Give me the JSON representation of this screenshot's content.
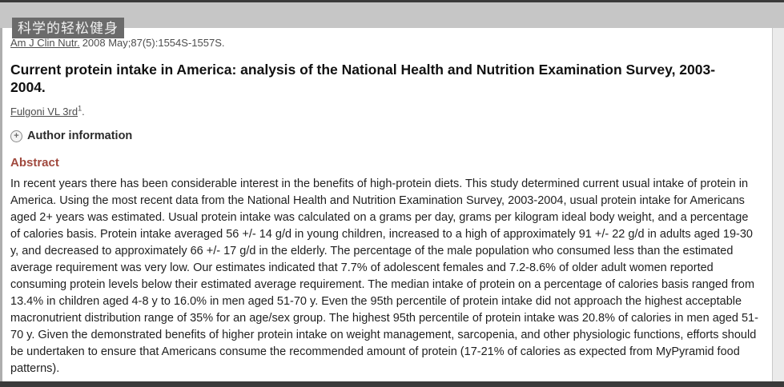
{
  "overlay": {
    "watermark_text": "科学的轻松健身"
  },
  "citation": {
    "journal": "Am J Clin Nutr.",
    "details": "2008 May;87(5):1554S-1557S."
  },
  "article": {
    "title": "Current protein intake in America: analysis of the National Health and Nutrition Examination Survey, 2003-2004.",
    "author": "Fulgoni VL 3rd",
    "author_affiliation_marker": "1",
    "author_period": ".",
    "author_information_label": "Author information"
  },
  "icons": {
    "expand_glyph": "+"
  },
  "abstract": {
    "heading": "Abstract",
    "body": "In recent years there has been considerable interest in the benefits of high-protein diets. This study determined current usual intake of protein in America. Using the most recent data from the National Health and Nutrition Examination Survey, 2003-2004, usual protein intake for Americans aged 2+ years was estimated. Usual protein intake was calculated on a grams per day, grams per kilogram ideal body weight, and a percentage of calories basis. Protein intake averaged 56 +/- 14 g/d in young children, increased to a high of approximately 91 +/- 22 g/d in adults aged 19-30 y, and decreased to approximately 66 +/- 17 g/d in the elderly. The percentage of the male population who consumed less than the estimated average requirement was very low. Our estimates indicated that 7.7% of adolescent females and 7.2-8.6% of older adult women reported consuming protein levels below their estimated average requirement. The median intake of protein on a percentage of calories basis ranged from 13.4% in children aged 4-8 y to 16.0% in men aged 51-70 y. Even the 95th percentile of protein intake did not approach the highest acceptable macronutrient distribution range of 35% for an age/sex group. The highest 95th percentile of protein intake was 20.8% of calories in men aged 51-70 y. Given the demonstrated benefits of higher protein intake on weight management, sarcopenia, and other physiologic functions, efforts should be undertaken to ensure that Americans consume the recommended amount of protein (17-21% of calories as expected from MyPyramid food patterns)."
  },
  "colors": {
    "abstract_heading": "#a0493e",
    "header_band": "#c6c6c6",
    "watermark_background": "#6b6b6b",
    "frame_bars": "#3a3a3a",
    "link_text": "#4d4d4d"
  }
}
